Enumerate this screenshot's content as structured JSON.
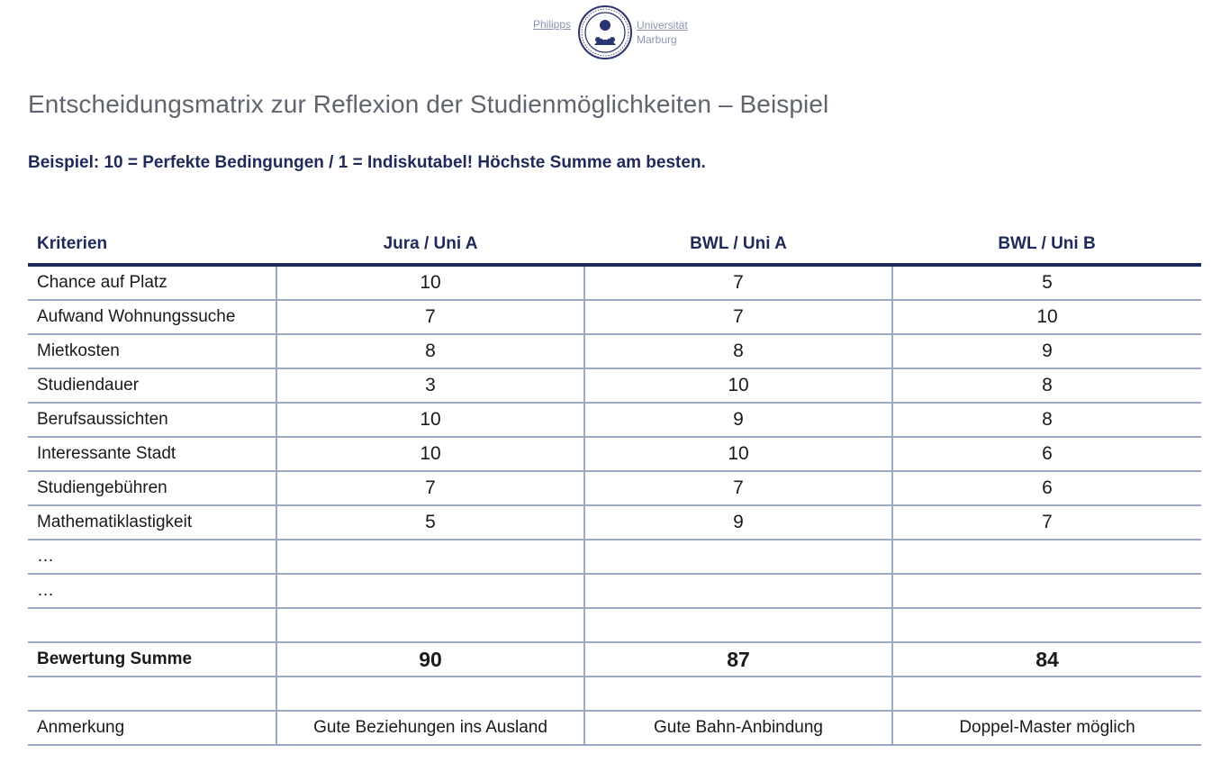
{
  "header": {
    "logo_left": "Philipps",
    "logo_right_line1": "Universität",
    "logo_right_line2": "Marburg",
    "seal_icon": "university-seal-icon"
  },
  "title": "Entscheidungsmatrix zur Reflexion der Studienmöglichkeiten – Beispiel",
  "subtitle": "Beispiel: 10 = Perfekte Bedingungen / 1 = Indiskutabel! Höchste Summe am besten.",
  "table": {
    "headers": [
      "Kriterien",
      "Jura / Uni A",
      "BWL / Uni A",
      "BWL / Uni B"
    ],
    "rows": [
      [
        "Chance auf Platz",
        "10",
        "7",
        "5"
      ],
      [
        "Aufwand Wohnungssuche",
        "7",
        "7",
        "10"
      ],
      [
        "Mietkosten",
        "8",
        "8",
        "9"
      ],
      [
        "Studiendauer",
        "3",
        "10",
        "8"
      ],
      [
        "Berufsaussichten",
        "10",
        "9",
        "8"
      ],
      [
        "Interessante Stadt",
        "10",
        "10",
        "6"
      ],
      [
        "Studiengebühren",
        "7",
        "7",
        "6"
      ],
      [
        "Mathematiklastigkeit",
        "5",
        "9",
        "7"
      ],
      [
        "…",
        "",
        "",
        ""
      ],
      [
        "…",
        "",
        "",
        ""
      ],
      [
        "",
        "",
        "",
        ""
      ]
    ],
    "sum_row": [
      "Bewertung Summe",
      "90",
      "87",
      "84"
    ],
    "blank_row": [
      "",
      "",
      "",
      ""
    ],
    "note_row": [
      "Anmerkung",
      "Gute Beziehungen ins Ausland",
      "Gute Bahn-Anbindung",
      "Doppel-Master möglich"
    ]
  },
  "colors": {
    "accent": "#1f2a5a",
    "grid": "#9aabbf",
    "title": "#5f6470"
  }
}
